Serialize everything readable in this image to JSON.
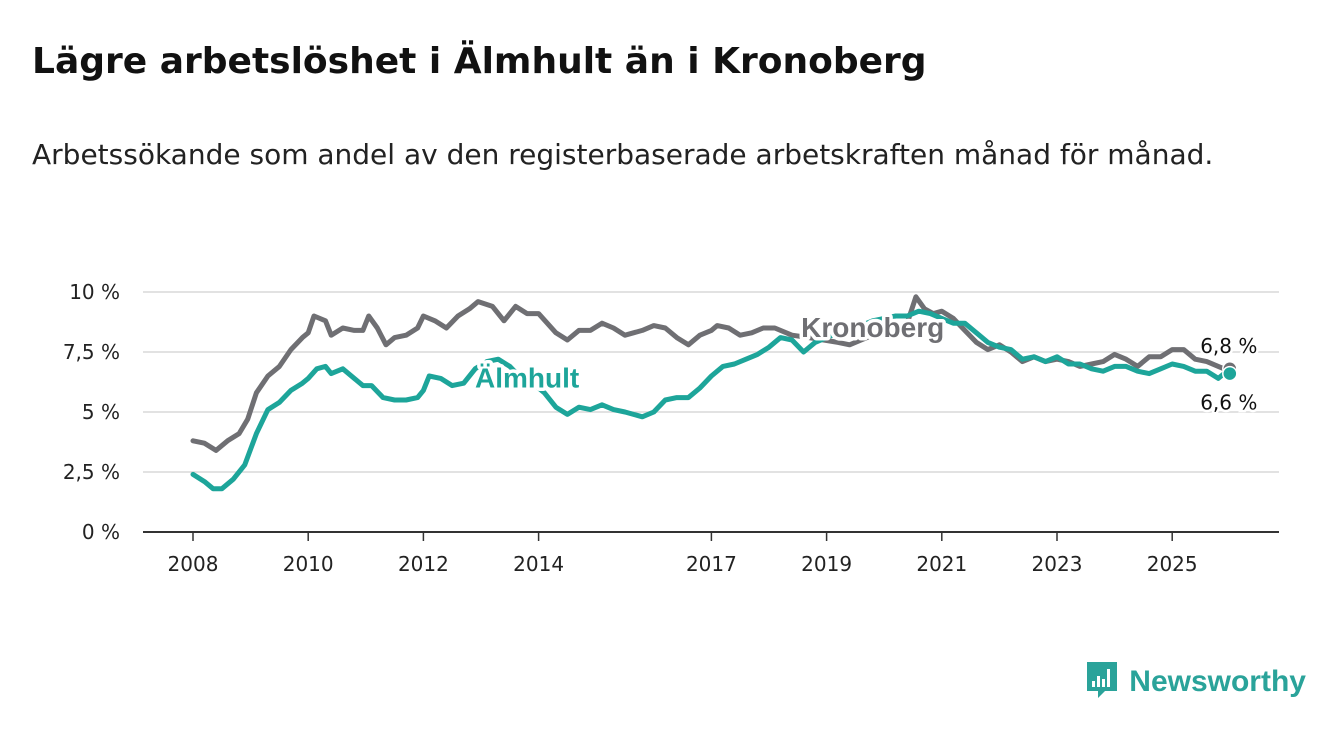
{
  "title": "Lägre arbetslöshet i Älmhult än i Kronoberg",
  "subtitle": "Arbetssökande som andel av den registerbaserade arbetskraften månad för månad.",
  "brand": {
    "name": "Newsworthy",
    "icon": "bar-chart-icon",
    "color": "#2aa39a"
  },
  "chart_data": {
    "type": "line",
    "title": "Lägre arbetslöshet i Älmhult än i Kronoberg",
    "xlabel": "",
    "ylabel": "",
    "xlim": [
      2008.0,
      2026.1
    ],
    "ylim": [
      0,
      10
    ],
    "y_ticks": [
      {
        "value": 0,
        "label": "0 %"
      },
      {
        "value": 2.5,
        "label": "2,5 %"
      },
      {
        "value": 5,
        "label": "5 %"
      },
      {
        "value": 7.5,
        "label": "7,5 %"
      },
      {
        "value": 10,
        "label": "10 %"
      }
    ],
    "x_ticks": [
      {
        "value": 2008,
        "label": "2008"
      },
      {
        "value": 2010,
        "label": "2010"
      },
      {
        "value": 2012,
        "label": "2012"
      },
      {
        "value": 2014,
        "label": "2014"
      },
      {
        "value": 2017,
        "label": "2017"
      },
      {
        "value": 2019,
        "label": "2019"
      },
      {
        "value": 2021,
        "label": "2021"
      },
      {
        "value": 2023,
        "label": "2023"
      },
      {
        "value": 2025,
        "label": "2025"
      }
    ],
    "grid": true,
    "series": [
      {
        "name": "Kronoberg",
        "color": "#6f6f73",
        "end_label": "6,8 %",
        "points": [
          [
            2008.0,
            3.8
          ],
          [
            2008.2,
            3.7
          ],
          [
            2008.4,
            3.4
          ],
          [
            2008.6,
            3.8
          ],
          [
            2008.8,
            4.1
          ],
          [
            2008.95,
            4.7
          ],
          [
            2009.1,
            5.8
          ],
          [
            2009.3,
            6.5
          ],
          [
            2009.5,
            6.9
          ],
          [
            2009.7,
            7.6
          ],
          [
            2009.9,
            8.1
          ],
          [
            2010.0,
            8.3
          ],
          [
            2010.1,
            9.0
          ],
          [
            2010.3,
            8.8
          ],
          [
            2010.4,
            8.2
          ],
          [
            2010.6,
            8.5
          ],
          [
            2010.8,
            8.4
          ],
          [
            2010.95,
            8.4
          ],
          [
            2011.05,
            9.0
          ],
          [
            2011.2,
            8.5
          ],
          [
            2011.35,
            7.8
          ],
          [
            2011.5,
            8.1
          ],
          [
            2011.7,
            8.2
          ],
          [
            2011.9,
            8.5
          ],
          [
            2012.0,
            9.0
          ],
          [
            2012.2,
            8.8
          ],
          [
            2012.4,
            8.5
          ],
          [
            2012.6,
            9.0
          ],
          [
            2012.8,
            9.3
          ],
          [
            2012.95,
            9.6
          ],
          [
            2013.2,
            9.4
          ],
          [
            2013.4,
            8.8
          ],
          [
            2013.6,
            9.4
          ],
          [
            2013.8,
            9.1
          ],
          [
            2014.0,
            9.1
          ],
          [
            2014.3,
            8.3
          ],
          [
            2014.5,
            8.0
          ],
          [
            2014.7,
            8.4
          ],
          [
            2014.9,
            8.4
          ],
          [
            2015.1,
            8.7
          ],
          [
            2015.3,
            8.5
          ],
          [
            2015.5,
            8.2
          ],
          [
            2015.8,
            8.4
          ],
          [
            2016.0,
            8.6
          ],
          [
            2016.2,
            8.5
          ],
          [
            2016.4,
            8.1
          ],
          [
            2016.6,
            7.8
          ],
          [
            2016.8,
            8.2
          ],
          [
            2017.0,
            8.4
          ],
          [
            2017.1,
            8.6
          ],
          [
            2017.3,
            8.5
          ],
          [
            2017.5,
            8.2
          ],
          [
            2017.7,
            8.3
          ],
          [
            2017.9,
            8.5
          ],
          [
            2018.1,
            8.5
          ],
          [
            2018.4,
            8.2
          ],
          [
            2018.7,
            8.1
          ],
          [
            2018.95,
            8.0
          ],
          [
            2019.2,
            7.9
          ],
          [
            2019.4,
            7.8
          ],
          [
            2019.6,
            8.0
          ],
          [
            2019.8,
            8.2
          ],
          [
            2020.0,
            8.5
          ],
          [
            2020.2,
            8.6
          ],
          [
            2020.4,
            8.7
          ],
          [
            2020.55,
            9.8
          ],
          [
            2020.7,
            9.3
          ],
          [
            2020.85,
            9.1
          ],
          [
            2021.0,
            9.2
          ],
          [
            2021.2,
            8.9
          ],
          [
            2021.4,
            8.4
          ],
          [
            2021.6,
            7.9
          ],
          [
            2021.8,
            7.6
          ],
          [
            2022.0,
            7.8
          ],
          [
            2022.2,
            7.5
          ],
          [
            2022.4,
            7.1
          ],
          [
            2022.6,
            7.3
          ],
          [
            2022.8,
            7.1
          ],
          [
            2023.0,
            7.2
          ],
          [
            2023.2,
            7.1
          ],
          [
            2023.4,
            6.9
          ],
          [
            2023.6,
            7.0
          ],
          [
            2023.8,
            7.1
          ],
          [
            2024.0,
            7.4
          ],
          [
            2024.2,
            7.2
          ],
          [
            2024.4,
            6.9
          ],
          [
            2024.6,
            7.3
          ],
          [
            2024.8,
            7.3
          ],
          [
            2025.0,
            7.6
          ],
          [
            2025.2,
            7.6
          ],
          [
            2025.4,
            7.2
          ],
          [
            2025.6,
            7.1
          ],
          [
            2025.8,
            6.9
          ],
          [
            2025.9,
            6.8
          ],
          [
            2026.0,
            6.8
          ]
        ]
      },
      {
        "name": "Älmhult",
        "color": "#1da59a",
        "end_label": "6,6 %",
        "points": [
          [
            2008.0,
            2.4
          ],
          [
            2008.2,
            2.1
          ],
          [
            2008.35,
            1.8
          ],
          [
            2008.5,
            1.8
          ],
          [
            2008.7,
            2.2
          ],
          [
            2008.9,
            2.8
          ],
          [
            2009.1,
            4.1
          ],
          [
            2009.3,
            5.1
          ],
          [
            2009.5,
            5.4
          ],
          [
            2009.7,
            5.9
          ],
          [
            2009.9,
            6.2
          ],
          [
            2010.0,
            6.4
          ],
          [
            2010.15,
            6.8
          ],
          [
            2010.3,
            6.9
          ],
          [
            2010.4,
            6.6
          ],
          [
            2010.6,
            6.8
          ],
          [
            2010.8,
            6.4
          ],
          [
            2010.95,
            6.1
          ],
          [
            2011.1,
            6.1
          ],
          [
            2011.3,
            5.6
          ],
          [
            2011.5,
            5.5
          ],
          [
            2011.7,
            5.5
          ],
          [
            2011.9,
            5.6
          ],
          [
            2012.0,
            5.9
          ],
          [
            2012.1,
            6.5
          ],
          [
            2012.3,
            6.4
          ],
          [
            2012.5,
            6.1
          ],
          [
            2012.7,
            6.2
          ],
          [
            2012.9,
            6.8
          ],
          [
            2013.1,
            7.1
          ],
          [
            2013.3,
            7.2
          ],
          [
            2013.5,
            6.9
          ],
          [
            2013.7,
            6.4
          ],
          [
            2013.9,
            6.2
          ],
          [
            2014.1,
            5.8
          ],
          [
            2014.3,
            5.2
          ],
          [
            2014.5,
            4.9
          ],
          [
            2014.7,
            5.2
          ],
          [
            2014.9,
            5.1
          ],
          [
            2015.1,
            5.3
          ],
          [
            2015.3,
            5.1
          ],
          [
            2015.5,
            5.0
          ],
          [
            2015.8,
            4.8
          ],
          [
            2016.0,
            5.0
          ],
          [
            2016.2,
            5.5
          ],
          [
            2016.4,
            5.6
          ],
          [
            2016.6,
            5.6
          ],
          [
            2016.8,
            6.0
          ],
          [
            2017.0,
            6.5
          ],
          [
            2017.2,
            6.9
          ],
          [
            2017.4,
            7.0
          ],
          [
            2017.6,
            7.2
          ],
          [
            2017.8,
            7.4
          ],
          [
            2018.0,
            7.7
          ],
          [
            2018.2,
            8.1
          ],
          [
            2018.4,
            8.0
          ],
          [
            2018.6,
            7.5
          ],
          [
            2018.8,
            7.9
          ],
          [
            2019.0,
            8.1
          ],
          [
            2019.2,
            8.3
          ],
          [
            2019.4,
            8.5
          ],
          [
            2019.6,
            8.6
          ],
          [
            2019.8,
            8.8
          ],
          [
            2020.0,
            8.9
          ],
          [
            2020.2,
            9.0
          ],
          [
            2020.4,
            9.0
          ],
          [
            2020.6,
            9.2
          ],
          [
            2020.8,
            9.1
          ],
          [
            2021.0,
            8.9
          ],
          [
            2021.2,
            8.7
          ],
          [
            2021.4,
            8.7
          ],
          [
            2021.6,
            8.3
          ],
          [
            2021.8,
            7.9
          ],
          [
            2022.0,
            7.7
          ],
          [
            2022.2,
            7.6
          ],
          [
            2022.4,
            7.2
          ],
          [
            2022.6,
            7.3
          ],
          [
            2022.8,
            7.1
          ],
          [
            2023.0,
            7.3
          ],
          [
            2023.2,
            7.0
          ],
          [
            2023.4,
            7.0
          ],
          [
            2023.6,
            6.8
          ],
          [
            2023.8,
            6.7
          ],
          [
            2024.0,
            6.9
          ],
          [
            2024.2,
            6.9
          ],
          [
            2024.4,
            6.7
          ],
          [
            2024.6,
            6.6
          ],
          [
            2024.8,
            6.8
          ],
          [
            2025.0,
            7.0
          ],
          [
            2025.2,
            6.9
          ],
          [
            2025.4,
            6.7
          ],
          [
            2025.6,
            6.7
          ],
          [
            2025.8,
            6.4
          ],
          [
            2025.9,
            6.6
          ],
          [
            2026.0,
            6.6
          ]
        ]
      }
    ],
    "annotations": [
      {
        "text": "Kronoberg",
        "series": "Kronoberg",
        "x": 2019.8,
        "y": 8.5
      },
      {
        "text": "Älmhult",
        "series": "Älmhult",
        "x": 2013.8,
        "y": 6.4
      }
    ]
  }
}
